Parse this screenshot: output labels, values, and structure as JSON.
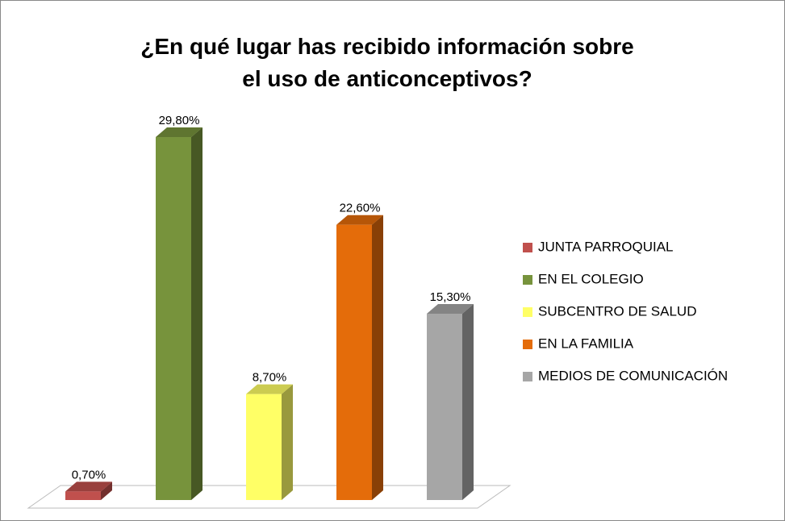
{
  "chart_data": {
    "type": "bar3d",
    "title": "¿En qué lugar has recibido información sobre el uso de anticonceptivos?",
    "series": [
      {
        "name": "JUNTA PARROQUIAL",
        "color": "#c0504d",
        "values": [
          0.7
        ],
        "value_labels": [
          "0,70%"
        ]
      },
      {
        "name": "EN EL COLEGIO",
        "color": "#77933c",
        "values": [
          29.8
        ],
        "value_labels": [
          "29,80%"
        ]
      },
      {
        "name": "SUBCENTRO DE SALUD",
        "color": "#ffff66",
        "values": [
          8.7
        ],
        "value_labels": [
          "8,70%"
        ]
      },
      {
        "name": "EN LA FAMILIA",
        "color": "#e46c0a",
        "values": [
          22.6
        ],
        "value_labels": [
          "22,60%"
        ]
      },
      {
        "name": "MEDIOS DE COMUNICACIÓN",
        "color": "#a6a6a6",
        "values": [
          15.3
        ],
        "value_labels": [
          "15,30%"
        ]
      }
    ],
    "legend": "right"
  }
}
